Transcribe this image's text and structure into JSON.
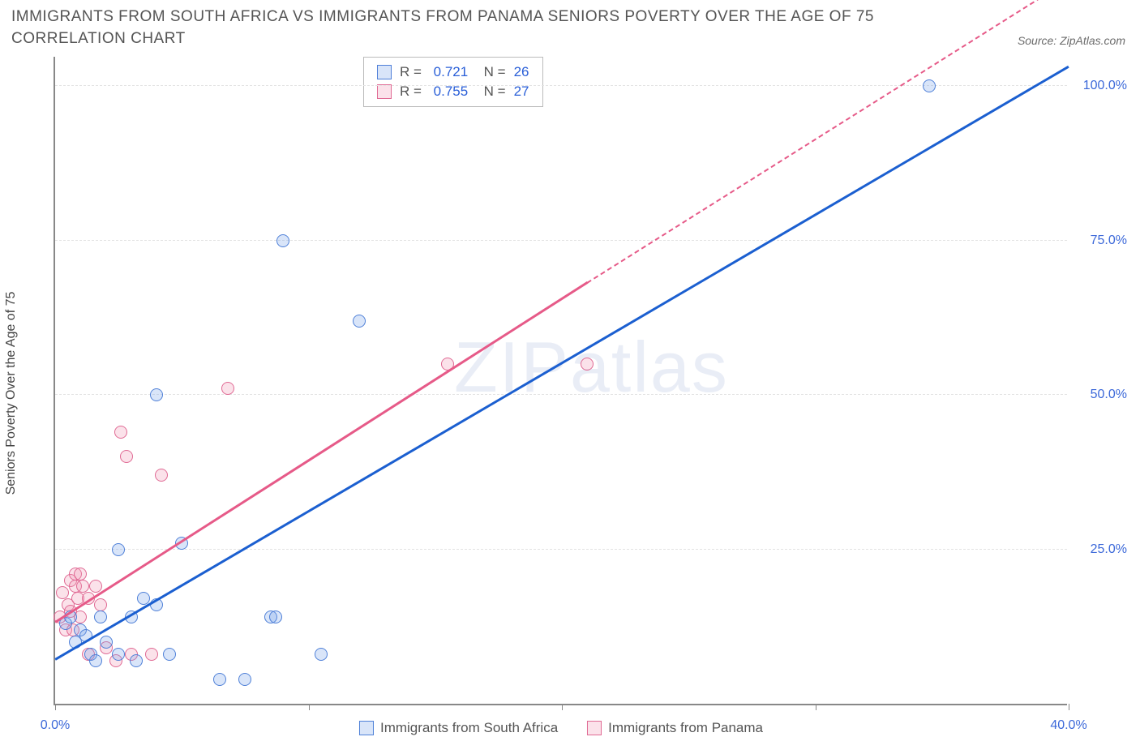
{
  "title": "IMMIGRANTS FROM SOUTH AFRICA VS IMMIGRANTS FROM PANAMA SENIORS POVERTY OVER THE AGE OF 75 CORRELATION CHART",
  "source": "Source: ZipAtlas.com",
  "y_axis_label": "Seniors Poverty Over the Age of 75",
  "watermark": "ZIPatlas",
  "chart": {
    "type": "scatter",
    "xlim": [
      0,
      40
    ],
    "ylim": [
      0,
      105
    ],
    "x_ticks": [
      0,
      10,
      20,
      30,
      40
    ],
    "x_tick_labels": [
      "0.0%",
      "",
      "",
      "",
      "40.0%"
    ],
    "y_ticks": [
      25,
      50,
      75,
      100
    ],
    "y_tick_labels": [
      "25.0%",
      "50.0%",
      "75.0%",
      "100.0%"
    ],
    "background_color": "#ffffff",
    "grid_color": "#e3e3e3",
    "axis_color": "#888888",
    "marker_radius": 8,
    "marker_border_width": 1.5,
    "series": [
      {
        "name": "Immigrants from South Africa",
        "fill": "rgba(120,160,235,0.28)",
        "stroke": "#4f80d8",
        "line_color": "#1b5fd0",
        "reg_start": [
          0,
          7
        ],
        "reg_end": [
          40,
          103
        ],
        "R": "0.721",
        "N": "26",
        "points": [
          [
            0.4,
            13
          ],
          [
            0.6,
            14
          ],
          [
            0.8,
            10
          ],
          [
            1.0,
            12
          ],
          [
            1.2,
            11
          ],
          [
            1.4,
            8
          ],
          [
            1.6,
            7
          ],
          [
            1.8,
            14
          ],
          [
            2.0,
            10
          ],
          [
            2.5,
            8
          ],
          [
            3.0,
            14
          ],
          [
            3.2,
            7
          ],
          [
            3.5,
            17
          ],
          [
            4.0,
            16
          ],
          [
            4.5,
            8
          ],
          [
            5.0,
            26
          ],
          [
            6.5,
            4
          ],
          [
            7.5,
            4
          ],
          [
            8.5,
            14
          ],
          [
            8.7,
            14
          ],
          [
            10.5,
            8
          ],
          [
            12.0,
            62
          ],
          [
            4.0,
            50
          ],
          [
            2.5,
            25
          ],
          [
            9.0,
            75
          ],
          [
            34.5,
            100
          ]
        ]
      },
      {
        "name": "Immigrants from Panama",
        "fill": "rgba(240,150,180,0.28)",
        "stroke": "#e06a94",
        "line_color": "#e65a88",
        "reg_start": [
          0,
          13
        ],
        "reg_end": [
          21,
          68
        ],
        "reg_dash_end": [
          40,
          117
        ],
        "R": "0.755",
        "N": "27",
        "points": [
          [
            0.2,
            14
          ],
          [
            0.3,
            18
          ],
          [
            0.4,
            12
          ],
          [
            0.5,
            16
          ],
          [
            0.6,
            15
          ],
          [
            0.6,
            20
          ],
          [
            0.7,
            12
          ],
          [
            0.8,
            19
          ],
          [
            0.8,
            21
          ],
          [
            0.9,
            17
          ],
          [
            1.0,
            14
          ],
          [
            1.0,
            21
          ],
          [
            1.1,
            19
          ],
          [
            1.3,
            17
          ],
          [
            1.3,
            8
          ],
          [
            1.6,
            19
          ],
          [
            1.8,
            16
          ],
          [
            2.0,
            9
          ],
          [
            2.4,
            7
          ],
          [
            2.6,
            44
          ],
          [
            2.8,
            40
          ],
          [
            3.0,
            8
          ],
          [
            3.8,
            8
          ],
          [
            4.2,
            37
          ],
          [
            6.8,
            51
          ],
          [
            15.5,
            55
          ],
          [
            21.0,
            55
          ]
        ]
      }
    ]
  },
  "legend_bottom": [
    "Immigrants from South Africa",
    "Immigrants from Panama"
  ]
}
